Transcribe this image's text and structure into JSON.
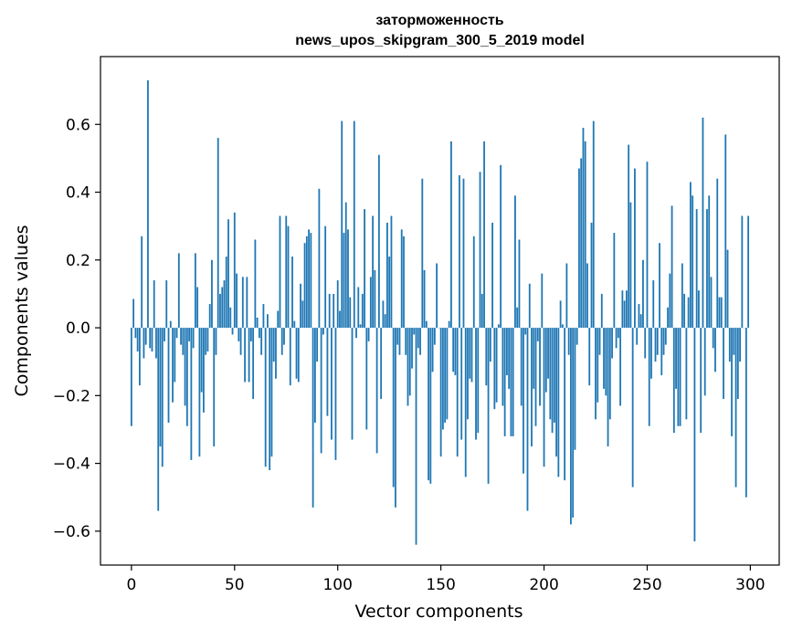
{
  "chart_data": {
    "type": "bar",
    "title_line1": "заторможенность",
    "title_line2": "news_upos_skipgram_300_5_2019 model",
    "xlabel": "Vector components",
    "ylabel": "Components values",
    "xlim": [
      -15,
      314
    ],
    "ylim": [
      -0.7,
      0.8
    ],
    "xticks": [
      0,
      50,
      100,
      150,
      200,
      250,
      300
    ],
    "xtick_labels": [
      "0",
      "50",
      "100",
      "150",
      "200",
      "250",
      "300"
    ],
    "yticks": [
      -0.6,
      -0.4,
      -0.2,
      0.0,
      0.2,
      0.4,
      0.6
    ],
    "ytick_labels": [
      "−0.6",
      "−0.4",
      "−0.2",
      "0.0",
      "0.2",
      "0.4",
      "0.6"
    ],
    "grid": false,
    "bar_color": "#1f77b4",
    "x": [
      0,
      1,
      2,
      3,
      4,
      5,
      6,
      7,
      8,
      9,
      10,
      11,
      12,
      13,
      14,
      15,
      16,
      17,
      18,
      19,
      20,
      21,
      22,
      23,
      24,
      25,
      26,
      27,
      28,
      29,
      30,
      31,
      32,
      33,
      34,
      35,
      36,
      37,
      38,
      39,
      40,
      41,
      42,
      43,
      44,
      45,
      46,
      47,
      48,
      49,
      50,
      51,
      52,
      53,
      54,
      55,
      56,
      57,
      58,
      59,
      60,
      61,
      62,
      63,
      64,
      65,
      66,
      67,
      68,
      69,
      70,
      71,
      72,
      73,
      74,
      75,
      76,
      77,
      78,
      79,
      80,
      81,
      82,
      83,
      84,
      85,
      86,
      87,
      88,
      89,
      90,
      91,
      92,
      93,
      94,
      95,
      96,
      97,
      98,
      99,
      100,
      101,
      102,
      103,
      104,
      105,
      106,
      107,
      108,
      109,
      110,
      111,
      112,
      113,
      114,
      115,
      116,
      117,
      118,
      119,
      120,
      121,
      122,
      123,
      124,
      125,
      126,
      127,
      128,
      129,
      130,
      131,
      132,
      133,
      134,
      135,
      136,
      137,
      138,
      139,
      140,
      141,
      142,
      143,
      144,
      145,
      146,
      147,
      148,
      149,
      150,
      151,
      152,
      153,
      154,
      155,
      156,
      157,
      158,
      159,
      160,
      161,
      162,
      163,
      164,
      165,
      166,
      167,
      168,
      169,
      170,
      171,
      172,
      173,
      174,
      175,
      176,
      177,
      178,
      179,
      180,
      181,
      182,
      183,
      184,
      185,
      186,
      187,
      188,
      189,
      190,
      191,
      192,
      193,
      194,
      195,
      196,
      197,
      198,
      199,
      200,
      201,
      202,
      203,
      204,
      205,
      206,
      207,
      208,
      209,
      210,
      211,
      212,
      213,
      214,
      215,
      216,
      217,
      218,
      219,
      220,
      221,
      222,
      223,
      224,
      225,
      226,
      227,
      228,
      229,
      230,
      231,
      232,
      233,
      234,
      235,
      236,
      237,
      238,
      239,
      240,
      241,
      242,
      243,
      244,
      245,
      246,
      247,
      248,
      249,
      250,
      251,
      252,
      253,
      254,
      255,
      256,
      257,
      258,
      259,
      260,
      261,
      262,
      263,
      264,
      265,
      266,
      267,
      268,
      269,
      270,
      271,
      272,
      273,
      274,
      275,
      276,
      277,
      278,
      279,
      280,
      281,
      282,
      283,
      284,
      285,
      286,
      287,
      288,
      289,
      290,
      291,
      292,
      293,
      294,
      295,
      296,
      297,
      298,
      299
    ],
    "values": [
      -0.29,
      0.085,
      -0.03,
      -0.07,
      -0.17,
      0.27,
      -0.09,
      -0.05,
      0.73,
      -0.06,
      -0.07,
      0.14,
      -0.09,
      -0.54,
      -0.35,
      -0.41,
      -0.04,
      0.14,
      -0.28,
      0.02,
      -0.22,
      -0.16,
      -0.03,
      0.22,
      -0.05,
      -0.08,
      -0.23,
      -0.29,
      -0.04,
      -0.39,
      -0.06,
      0.22,
      0.12,
      -0.38,
      -0.19,
      -0.25,
      -0.08,
      -0.07,
      0.07,
      0.2,
      -0.35,
      -0.08,
      0.56,
      0.1,
      0.12,
      0.14,
      0.21,
      0.32,
      0.06,
      -0.02,
      0.34,
      0.16,
      -0.04,
      -0.08,
      0.15,
      -0.16,
      0.15,
      -0.16,
      -0.04,
      -0.21,
      0.26,
      0.03,
      -0.03,
      -0.08,
      0.07,
      -0.41,
      0.04,
      -0.42,
      -0.38,
      -0.1,
      -0.15,
      0.05,
      0.33,
      -0.08,
      -0.05,
      0.33,
      0.3,
      -0.17,
      0.21,
      0.02,
      -0.15,
      -0.16,
      0.13,
      0.08,
      0.25,
      0.27,
      0.29,
      0.28,
      -0.53,
      -0.28,
      -0.1,
      0.41,
      -0.37,
      -0.02,
      0.3,
      -0.26,
      0.1,
      -0.33,
      0.1,
      -0.39,
      0.14,
      0.05,
      0.61,
      0.28,
      0.37,
      0.29,
      0.09,
      -0.33,
      0.61,
      -0.03,
      0.12,
      0.01,
      0.1,
      0.35,
      -0.3,
      -0.04,
      0.15,
      0.33,
      0.17,
      -0.37,
      0.51,
      -0.21,
      0.08,
      0.04,
      0.31,
      0.21,
      0.33,
      -0.47,
      -0.53,
      -0.05,
      -0.08,
      0.29,
      0.27,
      -0.08,
      -0.23,
      -0.2,
      -0.12,
      -0.02,
      -0.64,
      -0.06,
      -0.08,
      0.44,
      0.17,
      0.02,
      -0.45,
      -0.46,
      -0.13,
      -0.05,
      0.19,
      0.0,
      -0.38,
      -0.3,
      -0.28,
      -0.27,
      0.02,
      0.55,
      -0.13,
      -0.14,
      -0.38,
      0.45,
      -0.33,
      0.44,
      -0.44,
      -0.27,
      -0.15,
      -0.16,
      0.27,
      -0.33,
      -0.31,
      0.46,
      0.1,
      0.55,
      -0.17,
      -0.46,
      -0.1,
      0.31,
      -0.24,
      -0.22,
      0.01,
      0.48,
      -0.23,
      -0.32,
      -0.14,
      -0.18,
      -0.32,
      -0.32,
      0.39,
      0.06,
      0.26,
      -0.23,
      -0.43,
      -0.02,
      -0.54,
      0.13,
      -0.35,
      -0.18,
      -0.29,
      -0.04,
      -0.23,
      0.16,
      -0.41,
      -0.19,
      -0.15,
      -0.27,
      -0.31,
      -0.28,
      -0.38,
      -0.44,
      0.08,
      0.01,
      -0.45,
      0.19,
      -0.08,
      -0.58,
      -0.56,
      -0.36,
      -0.05,
      0.47,
      0.5,
      0.59,
      0.55,
      0.19,
      -0.17,
      0.31,
      0.61,
      -0.27,
      -0.22,
      -0.08,
      0.1,
      -0.18,
      -0.2,
      -0.35,
      -0.27,
      -0.09,
      0.28,
      -0.06,
      -0.03,
      -0.23,
      0.11,
      0.08,
      0.11,
      0.54,
      0.37,
      -0.47,
      0.47,
      -0.05,
      0.07,
      0.04,
      0.2,
      -0.09,
      0.49,
      -0.29,
      -0.15,
      0.14,
      -0.1,
      -0.08,
      0.25,
      -0.14,
      -0.08,
      -0.05,
      0.06,
      0.16,
      0.36,
      -0.31,
      -0.18,
      -0.29,
      -0.29,
      0.19,
      0.1,
      -0.27,
      0.09,
      0.43,
      0.39,
      -0.63,
      0.35,
      0.11,
      -0.31,
      0.62,
      -0.2,
      0.35,
      0.39,
      0.15,
      -0.06,
      -0.13,
      0.44,
      0.09,
      0.09,
      -0.21,
      0.57,
      0.23,
      -0.1,
      -0.32,
      -0.08,
      -0.47,
      -0.21,
      -0.1,
      0.33,
      0.0,
      -0.5,
      0.33
    ]
  }
}
